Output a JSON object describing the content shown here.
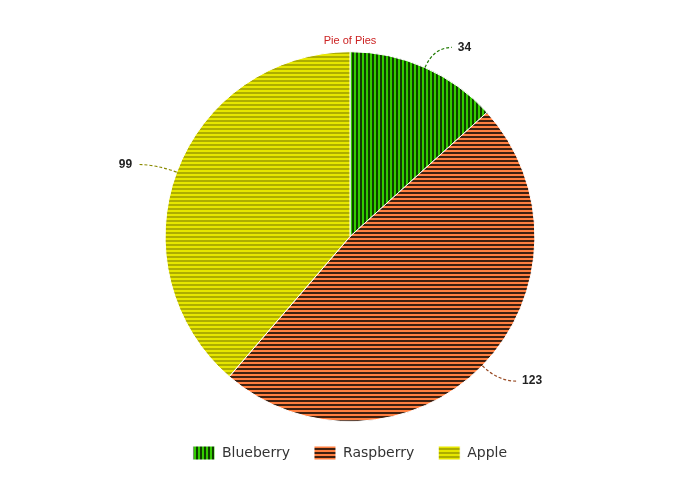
{
  "chart_data": {
    "type": "pie",
    "title": "Pie of Pies",
    "categories": [
      "Blueberry",
      "Raspberry",
      "Apple"
    ],
    "values": [
      34,
      123,
      99
    ],
    "colors": [
      "#33cc00",
      "#ff7f40",
      "#e6e600"
    ],
    "data_labels": true,
    "legend": "bottom"
  }
}
